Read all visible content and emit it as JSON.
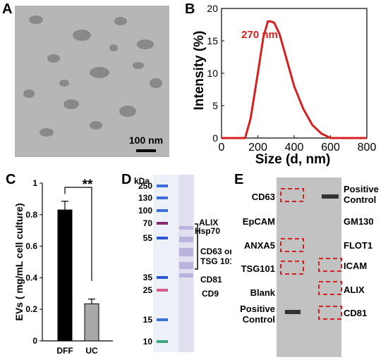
{
  "panels": {
    "A": {
      "letter": "A",
      "scale_bar_label": "100 nm"
    },
    "B": {
      "letter": "B",
      "peak_annotation": "270 nm",
      "line_color": "#d62020"
    },
    "C": {
      "letter": "C",
      "significance": "**"
    },
    "D": {
      "letter": "D",
      "unit_label": "kDa",
      "ladder_labels": [
        "250",
        "130",
        "100",
        "70",
        "55",
        "35",
        "25",
        "15",
        "10"
      ],
      "band_labels": [
        "ALIX",
        "Hsp70",
        "CD63 or",
        "TSG 101",
        "CD81",
        "CD9"
      ]
    },
    "E": {
      "letter": "E",
      "left_labels": [
        "CD63",
        "EpCAM",
        "ANXA5",
        "TSG101",
        "Blank",
        "Positive",
        "Control"
      ],
      "right_labels": [
        "Positive",
        "Control",
        "GM130",
        "FLOT1",
        "ICAM",
        "ALIX",
        "CD81"
      ]
    }
  },
  "chart_data": [
    {
      "type": "line",
      "panel": "B",
      "xlabel": "Size  (d, nm)",
      "ylabel": "Intensity  (%)",
      "xlim": [
        0,
        800
      ],
      "ylim": [
        0,
        20
      ],
      "xticks": [
        "0",
        "200",
        "400",
        "600",
        "800"
      ],
      "yticks": [
        "0",
        "5",
        "10",
        "15",
        "20"
      ],
      "x": [
        0,
        130,
        160,
        200,
        230,
        255,
        270,
        290,
        320,
        360,
        400,
        450,
        500,
        550,
        600,
        800
      ],
      "y": [
        0,
        0,
        3,
        10,
        15.5,
        18,
        18,
        17.8,
        16,
        12,
        8,
        4.5,
        2,
        0.7,
        0,
        0
      ]
    },
    {
      "type": "bar",
      "panel": "C",
      "categories": [
        "DFF",
        "UC"
      ],
      "values": [
        0.83,
        0.235
      ],
      "errors": [
        0.055,
        0.03
      ],
      "colors": [
        "#000000",
        "#a8a8a8"
      ],
      "ylabel": "EVs ( mg/mL cell culture)",
      "ylim": [
        0,
        1
      ],
      "yticks": [
        "0",
        "0.2",
        "0.4",
        "0.6",
        "0.8",
        "1"
      ]
    }
  ]
}
